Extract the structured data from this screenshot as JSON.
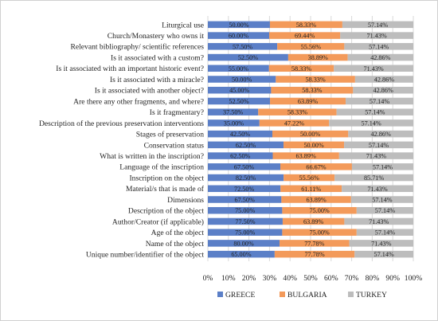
{
  "chart_data": {
    "type": "bar",
    "orientation": "horizontal",
    "stacked": "percent",
    "categories": [
      "Liturgical use",
      "Church/Monastery who owns it",
      "Relevant bibliography/ scientific references",
      "Is it associated with a custom?",
      "Is it associated with an important historic event?",
      "Is it associated with a miracle?",
      "Is it associated with another object?",
      "Are there any other fragments, and where?",
      "Is it fragmentary?",
      "Description of the previous preservation interventions",
      "Stages of preservation",
      "Conservation status",
      "What is written in the inscription?",
      "Language of the inscription",
      "Inscription on the object",
      "Material/s that is made of",
      "Dimensions",
      "Description of the object",
      "Author/Creator (if applicable)",
      "Age of the object",
      "Name of the object",
      "Unique number/identifier of the object"
    ],
    "series": [
      {
        "name": "GREECE",
        "color": "#5b7fc7",
        "values": [
          50.0,
          60.0,
          57.5,
          52.5,
          55.0,
          50.0,
          45.0,
          52.5,
          37.5,
          35.0,
          42.5,
          62.5,
          62.5,
          67.5,
          82.5,
          72.5,
          67.5,
          75.0,
          77.5,
          75.0,
          80.0,
          65.0
        ],
        "labels": [
          "50.00%",
          "60.00%",
          "57.50%",
          "52.50%",
          "55.00%",
          "50.00%",
          "45.00%",
          "52.50%",
          "37.50%",
          "35.00%",
          "42.50%",
          "62.50%",
          "62.50%",
          "67.50%",
          "82.50%",
          "72.50%",
          "67.50%",
          "75.00%",
          "77.50%",
          "75.00%",
          "80.00%",
          "65.00%"
        ]
      },
      {
        "name": "BULGARIA",
        "color": "#f39a5a",
        "values": [
          58.33,
          69.44,
          55.56,
          38.89,
          58.33,
          58.33,
          58.33,
          63.89,
          58.33,
          47.22,
          50.0,
          50.0,
          63.89,
          66.67,
          55.56,
          61.11,
          63.89,
          75.0,
          63.89,
          75.0,
          77.78,
          77.78
        ],
        "labels": [
          "58.33%",
          "69.44%",
          "55.56%",
          "38.89%",
          "58.33%",
          "58.33%",
          "58.33%",
          "63.89%",
          "58.33%",
          "47.22%",
          "50.00%",
          "50.00%",
          "63.89%",
          "66.67%",
          "55.56%",
          "61.11%",
          "63.89%",
          "75.00%",
          "63.89%",
          "75.00%",
          "77.78%",
          "77.78%"
        ]
      },
      {
        "name": "TURKEY",
        "color": "#bdbdbd",
        "values": [
          57.14,
          71.43,
          57.14,
          42.86,
          71.43,
          42.86,
          42.86,
          57.14,
          57.14,
          57.14,
          42.86,
          57.14,
          71.43,
          57.14,
          85.71,
          71.43,
          57.14,
          57.14,
          71.43,
          57.14,
          71.43,
          57.14
        ],
        "labels": [
          "57.14%",
          "71.43%",
          "57.14%",
          "42.86%",
          "71.43%",
          "42.86%",
          "42.86%",
          "57.14%",
          "57.14%",
          "57.14%",
          "42.86%",
          "57.14%",
          "71.43%",
          "57.14%",
          "85.71%",
          "71.43%",
          "57.14%",
          "57.14%",
          "71.43%",
          "57.14%",
          "71.43%",
          "57.14%"
        ]
      }
    ],
    "xlim": [
      0,
      100
    ],
    "x_ticks": [
      "0%",
      "10%",
      "20%",
      "30%",
      "40%",
      "50%",
      "60%",
      "70%",
      "80%",
      "90%",
      "100%"
    ],
    "grid": "vertical",
    "legend_position": "bottom"
  }
}
